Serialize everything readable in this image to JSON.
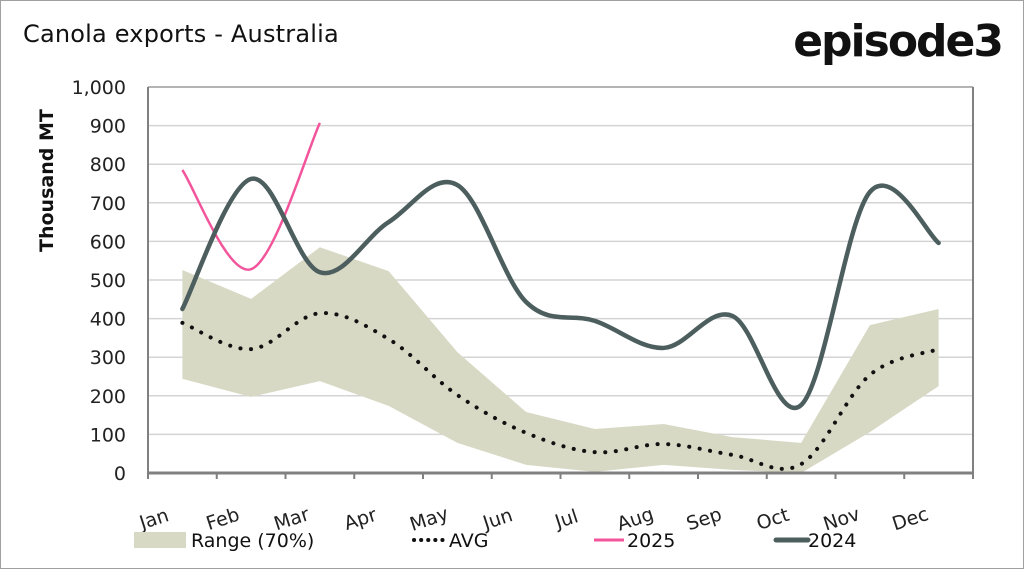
{
  "header": {
    "title": "Canola exports - Australia",
    "logo": "episode3"
  },
  "colors": {
    "range_fill": "#d8d9c5",
    "avg": "#111111",
    "y2025": "#f2559b",
    "y2024": "#4d5e5e",
    "grid": "#d4d4d4",
    "axis": "#808080"
  },
  "chart_data": {
    "type": "line",
    "title": "Canola exports - Australia",
    "xlabel": "",
    "ylabel": "Thousand MT",
    "ylim": [
      0,
      1000
    ],
    "ytick_step": 100,
    "y_tick_labels": [
      "0",
      "100",
      "200",
      "300",
      "400",
      "500",
      "600",
      "700",
      "800",
      "900",
      "1,000"
    ],
    "grid": true,
    "legend_position": "bottom",
    "categories": [
      "Jan",
      "Feb",
      "Mar",
      "Apr",
      "May",
      "Jun",
      "Jul",
      "Aug",
      "Sep",
      "Oct",
      "Nov",
      "Dec"
    ],
    "range": {
      "name": "Range (70%)",
      "upper": [
        526,
        451,
        585,
        523,
        313,
        158,
        114,
        127,
        93,
        78,
        383,
        425
      ],
      "lower": [
        244,
        197,
        238,
        174,
        78,
        21,
        3,
        21,
        8,
        0,
        106,
        225
      ]
    },
    "series": [
      {
        "name": "AVG",
        "style": "dotted",
        "values": [
          389,
          321,
          414,
          347,
          202,
          104,
          54,
          75,
          47,
          23,
          254,
          321
        ]
      },
      {
        "name": "2025",
        "style": "solid-thin",
        "values": [
          785,
          528,
          907,
          null,
          null,
          null,
          null,
          null,
          null,
          null,
          null,
          null
        ]
      },
      {
        "name": "2024",
        "style": "solid-thick",
        "values": [
          425,
          762,
          520,
          650,
          746,
          443,
          394,
          324,
          407,
          176,
          728,
          596
        ]
      }
    ]
  }
}
